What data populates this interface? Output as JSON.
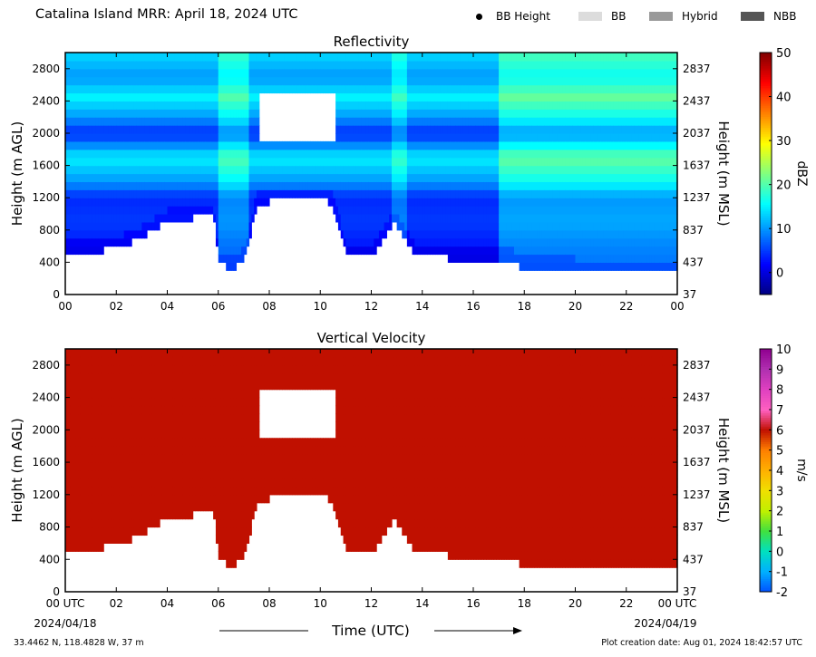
{
  "page": {
    "title": "Catalina Island MRR:  April 18, 2024 UTC",
    "footer_left": "33.4462 N, 118.4828 W, 37 m",
    "footer_right": "Plot creation date: Aug 01, 2024 18:42:57 UTC"
  },
  "legend": {
    "items": [
      {
        "label": "BB Height",
        "kind": "dot",
        "color": "#000000"
      },
      {
        "label": "BB",
        "kind": "swatch",
        "color": "#dcdcdc"
      },
      {
        "label": "Hybrid",
        "kind": "swatch",
        "color": "#9a9a9a"
      },
      {
        "label": "NBB",
        "kind": "swatch",
        "color": "#555555"
      }
    ]
  },
  "x_axis": {
    "label": "Time (UTC)",
    "ticks": [
      "00 UTC",
      "02",
      "04",
      "06",
      "08",
      "10",
      "12",
      "14",
      "16",
      "18",
      "20",
      "22",
      "00 UTC"
    ],
    "ticks_top_panel": [
      "00",
      "02",
      "04",
      "06",
      "08",
      "10",
      "12",
      "14",
      "16",
      "18",
      "20",
      "22",
      "00"
    ],
    "start_date": "2024/04/18",
    "end_date": "2024/04/19"
  },
  "chart_data": [
    {
      "type": "heatmap",
      "title": "Reflectivity",
      "ylabel": "Height (m AGL)",
      "ylabel_right": "Height (m MSL)",
      "xlim": [
        0,
        24
      ],
      "ylim": [
        0,
        3000
      ],
      "yticks": [
        0,
        400,
        800,
        1200,
        1600,
        2000,
        2400,
        2800
      ],
      "yticks_right": [
        "37",
        "437",
        "837",
        "1237",
        "1637",
        "2037",
        "2437",
        "2837"
      ],
      "colorbar": {
        "label": "dBZ",
        "range": [
          -5,
          50
        ],
        "ticks": [
          0,
          10,
          20,
          30,
          40,
          50
        ],
        "colors": [
          "#000080",
          "#0000ff",
          "#0080ff",
          "#00ffff",
          "#80ff80",
          "#ffff00",
          "#ff8000",
          "#ff0000",
          "#800000"
        ]
      },
      "echo_base_m": [
        [
          0,
          500
        ],
        [
          1,
          540
        ],
        [
          2,
          560
        ],
        [
          3,
          700
        ],
        [
          4,
          900
        ],
        [
          5,
          950
        ],
        [
          5.8,
          1000
        ],
        [
          6,
          400
        ],
        [
          6.6,
          300
        ],
        [
          7.1,
          500
        ],
        [
          7.5,
          1100
        ],
        [
          8.5,
          1200
        ],
        [
          10,
          1200
        ],
        [
          10.5,
          1100
        ],
        [
          11,
          500
        ],
        [
          12,
          450
        ],
        [
          12.9,
          900
        ],
        [
          13.3,
          700
        ],
        [
          13.7,
          500
        ],
        [
          15,
          450
        ],
        [
          17,
          450
        ],
        [
          17.6,
          400
        ],
        [
          18,
          300
        ],
        [
          19,
          350
        ],
        [
          20,
          300
        ],
        [
          24,
          300
        ]
      ],
      "echo_top_m": 3000,
      "gaps": [
        {
          "t0": 7.6,
          "t1": 10.6,
          "h0": 1900,
          "h1": 2500
        }
      ],
      "dbz_profile": [
        {
          "h": 300,
          "dbz": 2
        },
        {
          "h": 600,
          "dbz": 3
        },
        {
          "h": 900,
          "dbz": 5
        },
        {
          "h": 1200,
          "dbz": 4
        },
        {
          "h": 1400,
          "dbz": 10
        },
        {
          "h": 1700,
          "dbz": 15
        },
        {
          "h": 2000,
          "dbz": 4
        },
        {
          "h": 2200,
          "dbz": 10
        },
        {
          "h": 2450,
          "dbz": 15
        },
        {
          "h": 2700,
          "dbz": 10
        },
        {
          "h": 2950,
          "dbz": 13
        }
      ],
      "enhanced_bands": [
        {
          "t0": 6,
          "t1": 7.2,
          "delta": 5
        },
        {
          "t0": 12.8,
          "t1": 13.4,
          "delta": 4
        },
        {
          "t0": 17,
          "t1": 24,
          "delta": 6
        }
      ]
    },
    {
      "type": "heatmap",
      "title": "Vertical Velocity",
      "ylabel": "Height (m AGL)",
      "ylabel_right": "Height (m MSL)",
      "xlim": [
        0,
        24
      ],
      "ylim": [
        0,
        3000
      ],
      "yticks": [
        0,
        400,
        800,
        1200,
        1600,
        2000,
        2400,
        2800
      ],
      "yticks_right": [
        "37",
        "437",
        "837",
        "1237",
        "1637",
        "2037",
        "2437",
        "2837"
      ],
      "colorbar": {
        "label": "m/s",
        "range": [
          -2,
          10
        ],
        "ticks": [
          -2,
          -1,
          0,
          1,
          2,
          3,
          4,
          5,
          6,
          7,
          8,
          9,
          10
        ],
        "colors": [
          "#0050ff",
          "#00b0ff",
          "#00e0c0",
          "#40e040",
          "#c0f000",
          "#f0e000",
          "#ffb000",
          "#ff8000",
          "#c01000",
          "#ff60c0",
          "#e040c0",
          "#b030b0",
          "#900090"
        ]
      },
      "velocity_value_ms": 6,
      "echo_base_m": [
        [
          0,
          500
        ],
        [
          1,
          540
        ],
        [
          2,
          560
        ],
        [
          3,
          700
        ],
        [
          4,
          900
        ],
        [
          5,
          950
        ],
        [
          5.8,
          1000
        ],
        [
          6,
          400
        ],
        [
          6.6,
          300
        ],
        [
          7.1,
          500
        ],
        [
          7.5,
          1100
        ],
        [
          8.5,
          1200
        ],
        [
          10,
          1200
        ],
        [
          10.5,
          1100
        ],
        [
          11,
          500
        ],
        [
          12,
          450
        ],
        [
          12.9,
          900
        ],
        [
          13.3,
          700
        ],
        [
          13.7,
          500
        ],
        [
          15,
          450
        ],
        [
          17,
          450
        ],
        [
          17.6,
          400
        ],
        [
          18,
          300
        ],
        [
          19,
          350
        ],
        [
          20,
          300
        ],
        [
          24,
          300
        ]
      ],
      "echo_top_m": 3000,
      "gaps": [
        {
          "t0": 7.6,
          "t1": 10.6,
          "h0": 1900,
          "h1": 2500
        }
      ]
    }
  ]
}
